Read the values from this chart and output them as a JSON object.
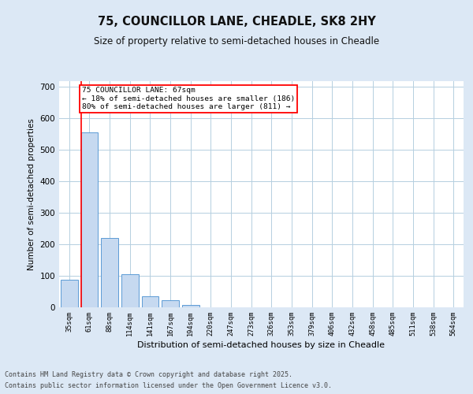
{
  "title_line1": "75, COUNCILLOR LANE, CHEADLE, SK8 2HY",
  "title_line2": "Size of property relative to semi-detached houses in Cheadle",
  "xlabel": "Distribution of semi-detached houses by size in Cheadle",
  "ylabel": "Number of semi-detached properties",
  "categories": [
    "35sqm",
    "61sqm",
    "88sqm",
    "114sqm",
    "141sqm",
    "167sqm",
    "194sqm",
    "220sqm",
    "247sqm",
    "273sqm",
    "326sqm",
    "353sqm",
    "379sqm",
    "406sqm",
    "432sqm",
    "458sqm",
    "485sqm",
    "511sqm",
    "538sqm",
    "564sqm"
  ],
  "values": [
    88,
    556,
    220,
    105,
    36,
    22,
    8,
    1,
    0,
    0,
    0,
    0,
    0,
    0,
    0,
    0,
    0,
    0,
    0,
    0
  ],
  "bar_color": "#c6d9f0",
  "bar_edge_color": "#5b9bd5",
  "subject_label": "75 COUNCILLOR LANE: 67sqm",
  "pct_smaller": "18% of semi-detached houses are smaller (186)",
  "pct_larger": "80% of semi-detached houses are larger (811)",
  "ylim": [
    0,
    720
  ],
  "yticks": [
    0,
    100,
    200,
    300,
    400,
    500,
    600,
    700
  ],
  "footer_line1": "Contains HM Land Registry data © Crown copyright and database right 2025.",
  "footer_line2": "Contains public sector information licensed under the Open Government Licence v3.0.",
  "background_color": "#dce8f5",
  "plot_bg_color": "#ffffff"
}
